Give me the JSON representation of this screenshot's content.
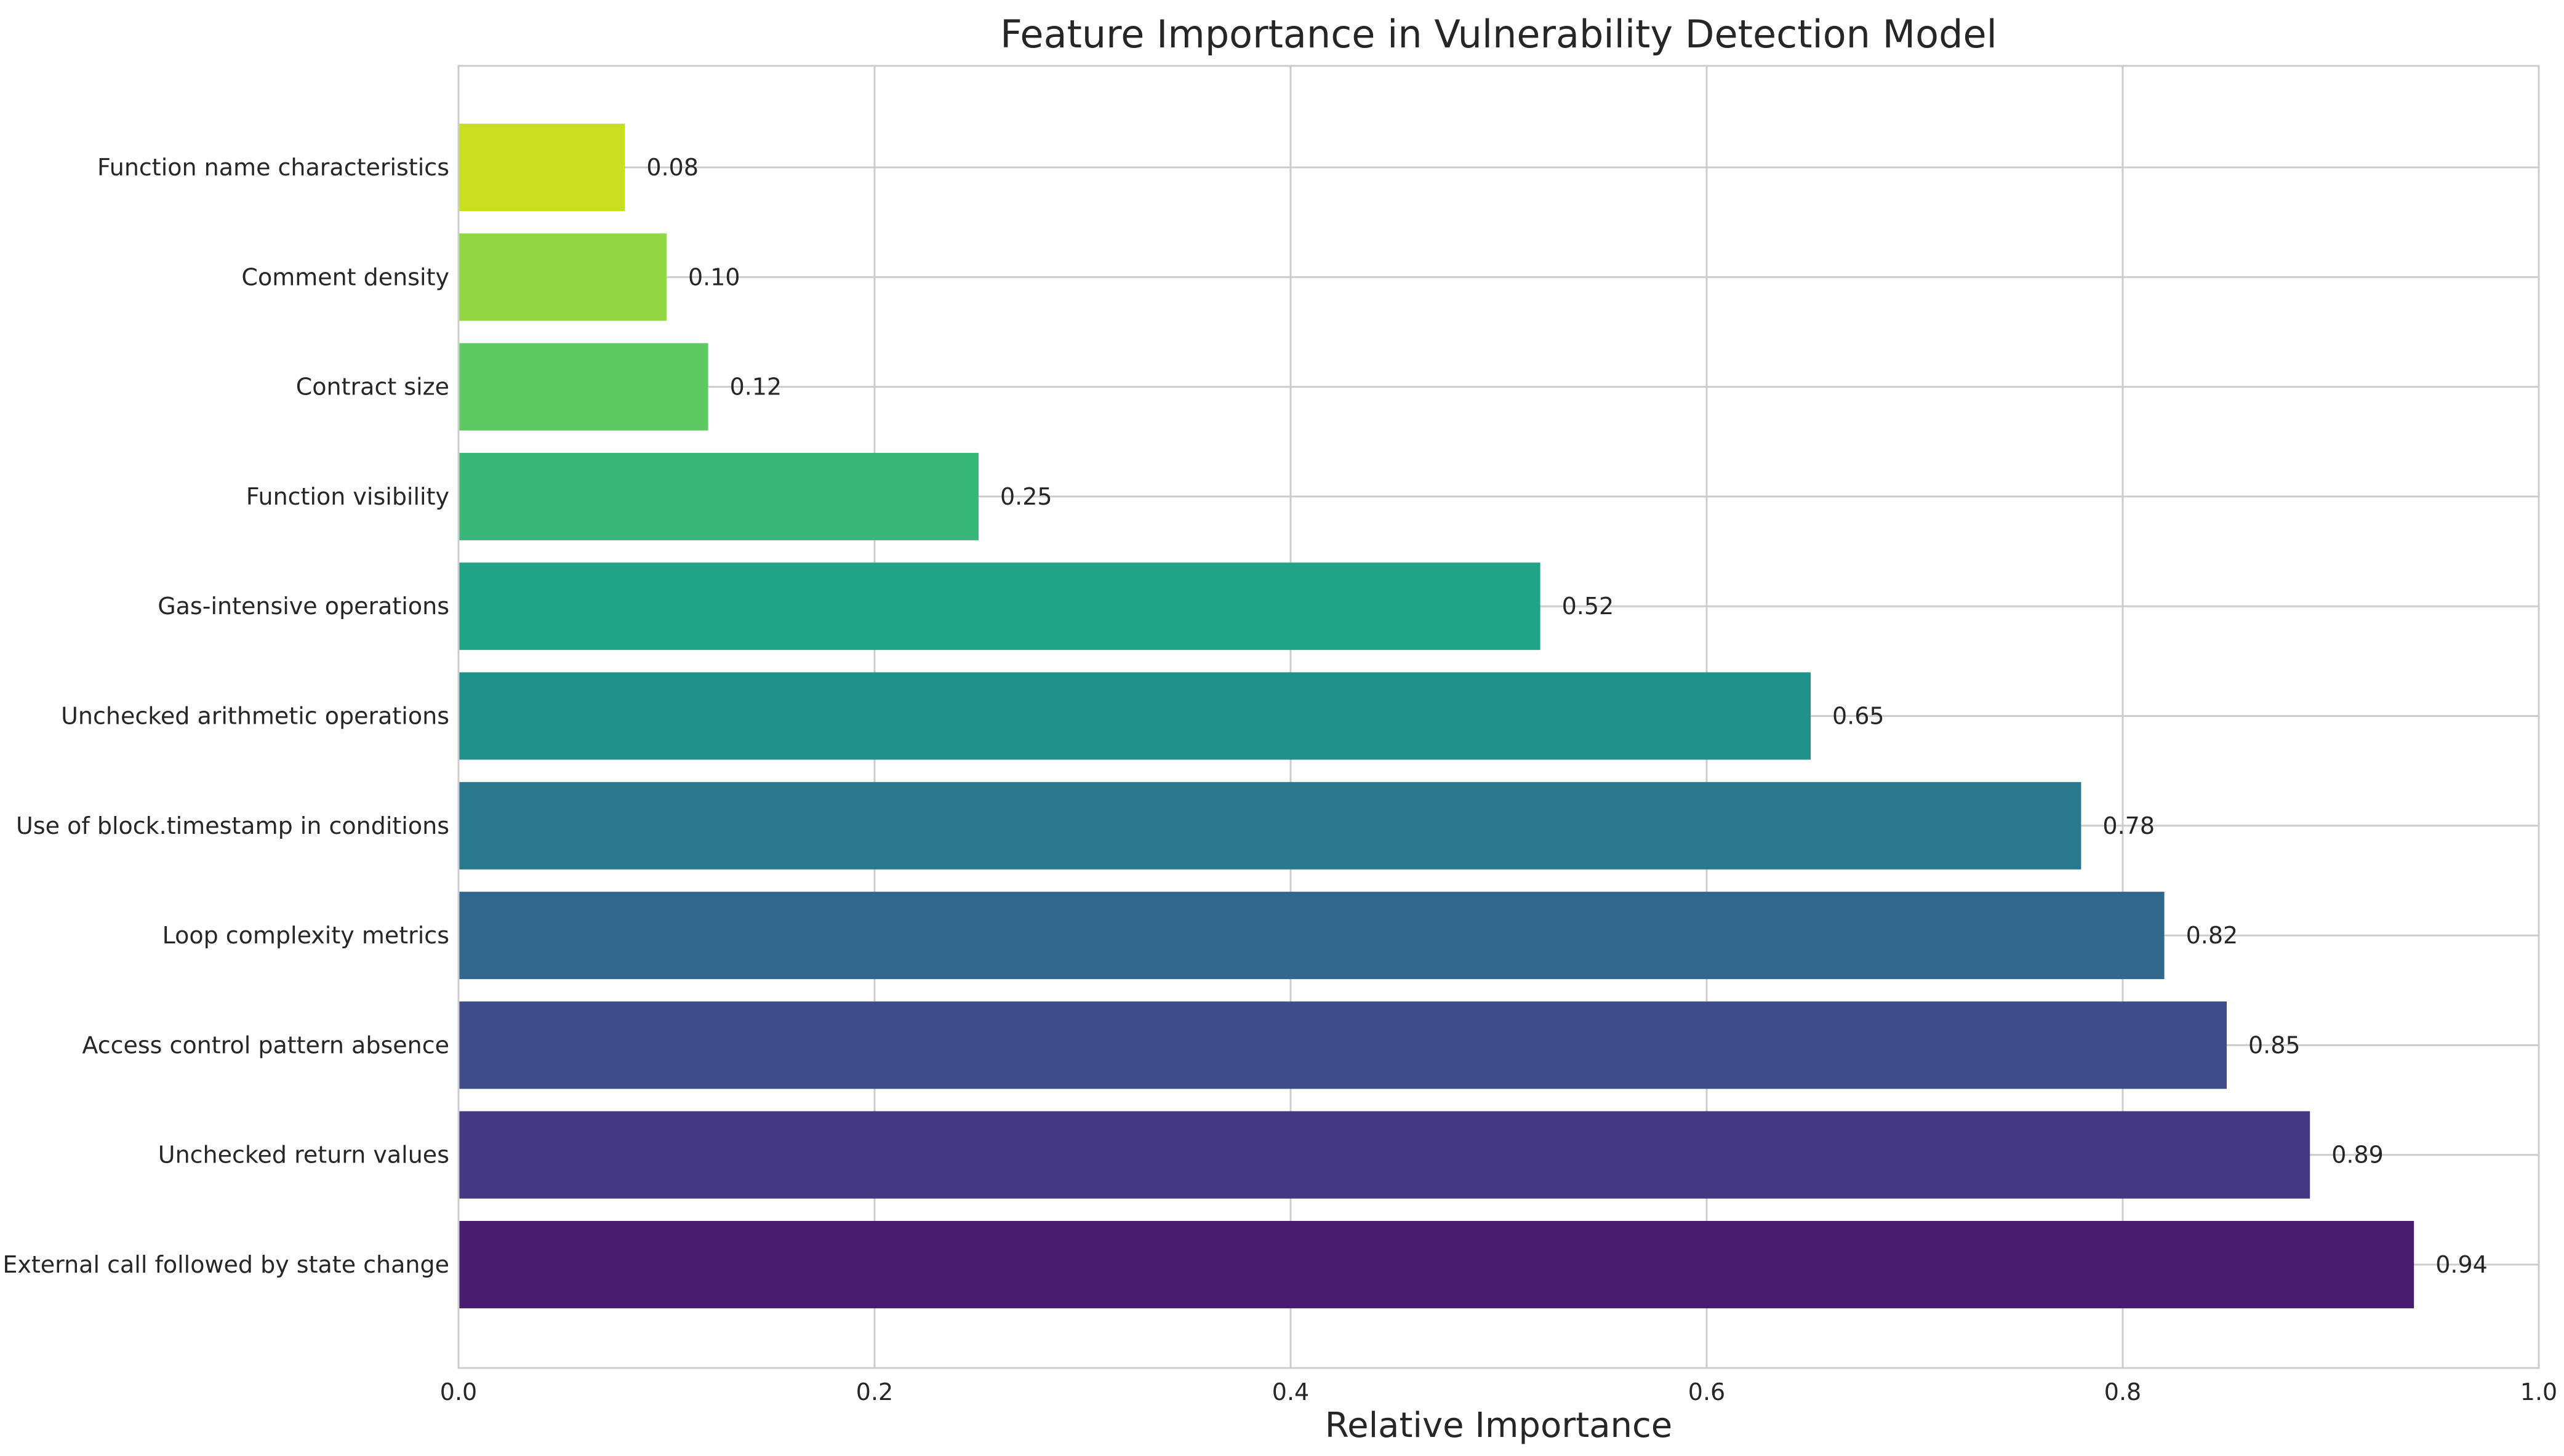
{
  "chart_data": {
    "type": "bar",
    "orientation": "horizontal",
    "title": "Feature Importance in Vulnerability Detection Model",
    "xlabel": "Relative Importance",
    "ylabel": "",
    "xlim": [
      0,
      1.0
    ],
    "x_ticks": [
      "0.0",
      "0.2",
      "0.4",
      "0.6",
      "0.8",
      "1.0"
    ],
    "grid": true,
    "legend": "none",
    "categories": [
      "External call followed by state change",
      "Unchecked return values",
      "Access control pattern absence",
      "Loop complexity metrics",
      "Use of block.timestamp in conditions",
      "Unchecked arithmetic operations",
      "Gas-intensive operations",
      "Function visibility",
      "Contract size",
      "Comment density",
      "Function name characteristics"
    ],
    "values": [
      0.94,
      0.89,
      0.85,
      0.82,
      0.78,
      0.65,
      0.52,
      0.25,
      0.12,
      0.1,
      0.08
    ],
    "value_labels": [
      "0.94",
      "0.89",
      "0.85",
      "0.82",
      "0.78",
      "0.65",
      "0.52",
      "0.25",
      "0.12",
      "0.10",
      "0.08"
    ],
    "colors": [
      "#481c6e",
      "#453882",
      "#3e4c8a",
      "#32688e",
      "#2a788e",
      "#21918c",
      "#20a386",
      "#37b878",
      "#5ec962",
      "#90d743",
      "#c8e020"
    ]
  }
}
